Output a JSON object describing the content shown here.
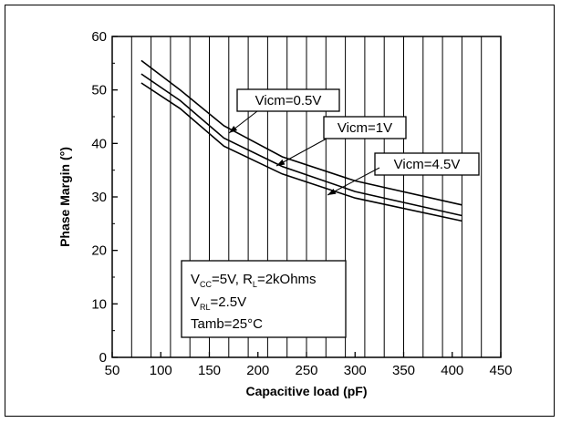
{
  "chart_data": {
    "type": "line",
    "xlabel": "Capacitive load (pF)",
    "ylabel": "Phase Margin (°)",
    "xlim": [
      50,
      450
    ],
    "ylim": [
      0,
      60
    ],
    "xticks": [
      50,
      100,
      150,
      200,
      250,
      300,
      350,
      400,
      450
    ],
    "yticks": [
      0,
      10,
      20,
      30,
      40,
      50,
      60
    ],
    "grid": "vertical",
    "series": [
      {
        "name": "Vicm=0.5V",
        "x": [
          80,
          120,
          165,
          225,
          300,
          410
        ],
        "y": [
          55.5,
          50,
          43.3,
          37.5,
          33,
          28.5
        ]
      },
      {
        "name": "Vicm=1V",
        "x": [
          80,
          120,
          165,
          225,
          300,
          410
        ],
        "y": [
          53,
          48,
          41,
          35.7,
          31,
          26.5
        ]
      },
      {
        "name": "Vicm=4.5V",
        "x": [
          80,
          120,
          165,
          225,
          300,
          410
        ],
        "y": [
          51.3,
          46.5,
          39.5,
          34.3,
          29.8,
          25.5
        ]
      }
    ],
    "conditions": {
      "vcc": {
        "pre": "V",
        "sub": "CC",
        "post": "=5V, R"
      },
      "rl": {
        "sub": "L",
        "post": "=2kOhms"
      },
      "vrl": {
        "pre": "V",
        "sub": "RL",
        "post": "=2.5V"
      },
      "tamb": "Tamb=25°C"
    }
  }
}
